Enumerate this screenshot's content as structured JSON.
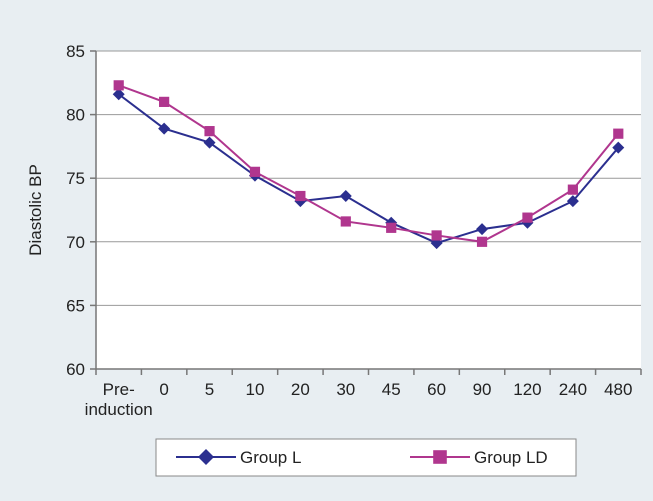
{
  "chart_data": {
    "type": "line",
    "title": "",
    "xlabel": "",
    "ylabel": "Diastolic BP",
    "categories": [
      "Pre-\ninduction",
      "0",
      "5",
      "10",
      "20",
      "30",
      "45",
      "60",
      "90",
      "120",
      "240",
      "480"
    ],
    "ylim": [
      60,
      85
    ],
    "yticks": [
      60,
      65,
      70,
      75,
      80,
      85
    ],
    "grid": true,
    "legend": "bottom",
    "series": [
      {
        "name": "Group L",
        "color": "#2b2f8f",
        "marker": "diamond",
        "values": [
          81.6,
          78.9,
          77.8,
          75.2,
          73.2,
          73.6,
          71.5,
          69.9,
          71.0,
          71.5,
          73.2,
          77.4
        ]
      },
      {
        "name": "Group LD",
        "color": "#b0368e",
        "marker": "square",
        "values": [
          82.3,
          81.0,
          78.7,
          75.5,
          73.6,
          71.6,
          71.1,
          70.5,
          70.0,
          71.9,
          74.1,
          78.5
        ]
      }
    ]
  }
}
